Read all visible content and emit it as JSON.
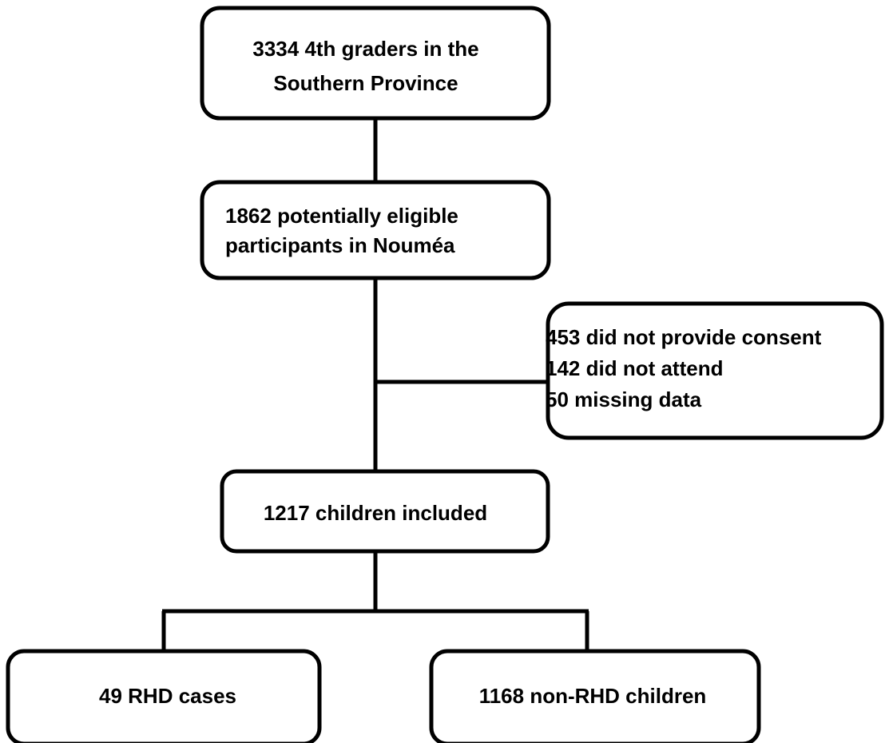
{
  "nodes": [
    {
      "lines": [
        "3334 4th graders in the",
        "Southern Province"
      ]
    },
    {
      "lines": [
        "1862 potentially eligible",
        "participants in Nouméa"
      ]
    },
    {
      "lines": [
        "453 did not provide consent",
        "142 did not attend",
        "50 missing data"
      ]
    },
    {
      "lines": [
        "1217 children included"
      ]
    },
    {
      "lines": [
        "49 RHD cases"
      ]
    },
    {
      "lines": [
        "1168 non-RHD children"
      ]
    }
  ]
}
